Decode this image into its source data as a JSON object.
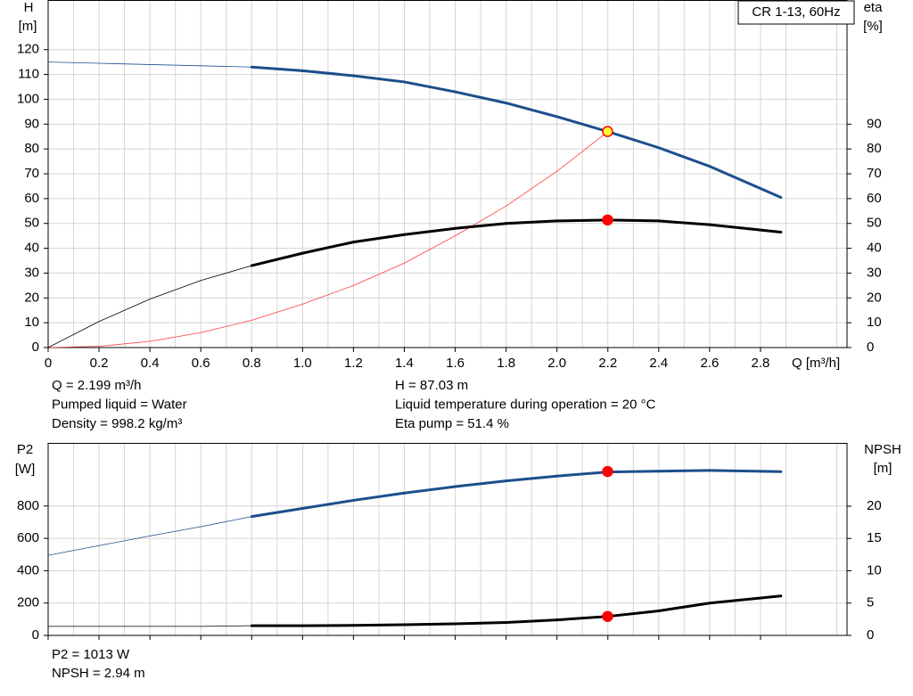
{
  "chart_data": [
    {
      "type": "line",
      "title": "CR 1-13, 60Hz",
      "y_label": [
        "H",
        "[m]"
      ],
      "y2_label": [
        "eta",
        "[%]"
      ],
      "x_label": "Q [m³/h]",
      "x": [
        0,
        0.2,
        0.4,
        0.6,
        0.8,
        1.0,
        1.2,
        1.4,
        1.6,
        1.8,
        2.0,
        2.2,
        2.4,
        2.6,
        2.88
      ],
      "series": [
        {
          "color": "#1b4f8c",
          "values": [
            115,
            114.5,
            114,
            113.5,
            113,
            111.5,
            109.5,
            107,
            103,
            98.5,
            93,
            87,
            80.5,
            73,
            60.5
          ]
        },
        {
          "color": "#ff3b3b",
          "bold": false,
          "values": [
            0,
            0.5,
            2.5,
            6,
            11,
            17.5,
            25,
            34,
            45,
            57,
            71,
            87,
            null,
            null,
            null
          ]
        },
        {
          "color": "#000000",
          "axis": "y2",
          "values": [
            0,
            10.5,
            19.5,
            27,
            33,
            38,
            42.5,
            45.5,
            48,
            50,
            51,
            51.4,
            51,
            49.5,
            46.5
          ]
        }
      ],
      "bold_from": 0.8,
      "markers": [
        {
          "x": 2.199,
          "y": 87.03,
          "color": "#ffff33"
        },
        {
          "x": 2.199,
          "y": 51.4,
          "axis": "y2",
          "color": "#ff0000"
        }
      ],
      "xlim": [
        0,
        3.14
      ],
      "xticks": [
        0,
        0.2,
        0.4,
        0.6,
        0.8,
        {
          "value": 1,
          "label": "1.0"
        },
        1.2,
        1.4,
        1.6,
        1.8,
        {
          "value": 2,
          "label": "2.0"
        },
        2.2,
        2.4,
        2.6,
        2.8
      ],
      "xminor_ticks": [
        0.1,
        0.3,
        0.5,
        0.7,
        0.9,
        1.1,
        1.3,
        1.5,
        1.7,
        1.9,
        2.1,
        2.3,
        2.5,
        2.7,
        2.9,
        3.1
      ],
      "ylim": [
        0,
        140
      ],
      "yticks": [
        0,
        10,
        20,
        30,
        40,
        50,
        60,
        70,
        80,
        90,
        100,
        110,
        120
      ],
      "y2lim": [
        0,
        140
      ],
      "y2ticks": [
        0,
        10,
        20,
        30,
        40,
        50,
        60,
        70,
        80,
        90
      ],
      "grid": true,
      "annotations": [
        "Q = 2.199 m³/h",
        "Pumped liquid = Water",
        "Density = 998.2 kg/m³",
        "H = 87.03 m",
        "Liquid temperature during operation = 20 °C",
        "Eta pump = 51.4 %"
      ]
    },
    {
      "type": "line",
      "y_label": [
        "P2",
        "[W]"
      ],
      "y2_label": [
        "NPSH",
        "[m]"
      ],
      "x": [
        0,
        0.2,
        0.4,
        0.6,
        0.8,
        1.0,
        1.2,
        1.4,
        1.6,
        1.8,
        2.0,
        2.2,
        2.4,
        2.6,
        2.88
      ],
      "series": [
        {
          "color": "#1b4f8c",
          "values": [
            495,
            555,
            615,
            672,
            735,
            785,
            835,
            880,
            920,
            955,
            985,
            1010,
            1015,
            1020,
            1012
          ]
        },
        {
          "color": "#000000",
          "axis": "y2",
          "values": [
            1.4,
            1.4,
            1.4,
            1.4,
            1.5,
            1.5,
            1.55,
            1.65,
            1.8,
            2.0,
            2.4,
            2.94,
            3.8,
            5.0,
            6.1
          ]
        }
      ],
      "bold_from": 0.8,
      "markers": [
        {
          "x": 2.199,
          "y": 1013,
          "color": "#ff0000"
        },
        {
          "x": 2.199,
          "y": 2.94,
          "axis": "y2",
          "color": "#ff0000"
        }
      ],
      "xlim": [
        0,
        3.14
      ],
      "xticks": [
        0,
        0.2,
        0.4,
        0.6,
        0.8,
        1,
        1.2,
        1.4,
        1.6,
        1.8,
        2,
        2.2,
        2.4,
        2.6,
        2.8
      ],
      "xtick_labels": false,
      "xminor_ticks": [
        0.1,
        0.3,
        0.5,
        0.7,
        0.9,
        1.1,
        1.3,
        1.5,
        1.7,
        1.9,
        2.1,
        2.3,
        2.5,
        2.7,
        2.9,
        3.1
      ],
      "ylim": [
        0,
        1190
      ],
      "yticks": [
        0,
        200,
        400,
        600,
        800
      ],
      "y2lim": [
        0,
        29.8
      ],
      "y2ticks": [
        0,
        5,
        10,
        15,
        20
      ],
      "grid": true,
      "annotations": [
        "P2 = 1013 W",
        "NPSH = 2.94 m"
      ]
    }
  ]
}
